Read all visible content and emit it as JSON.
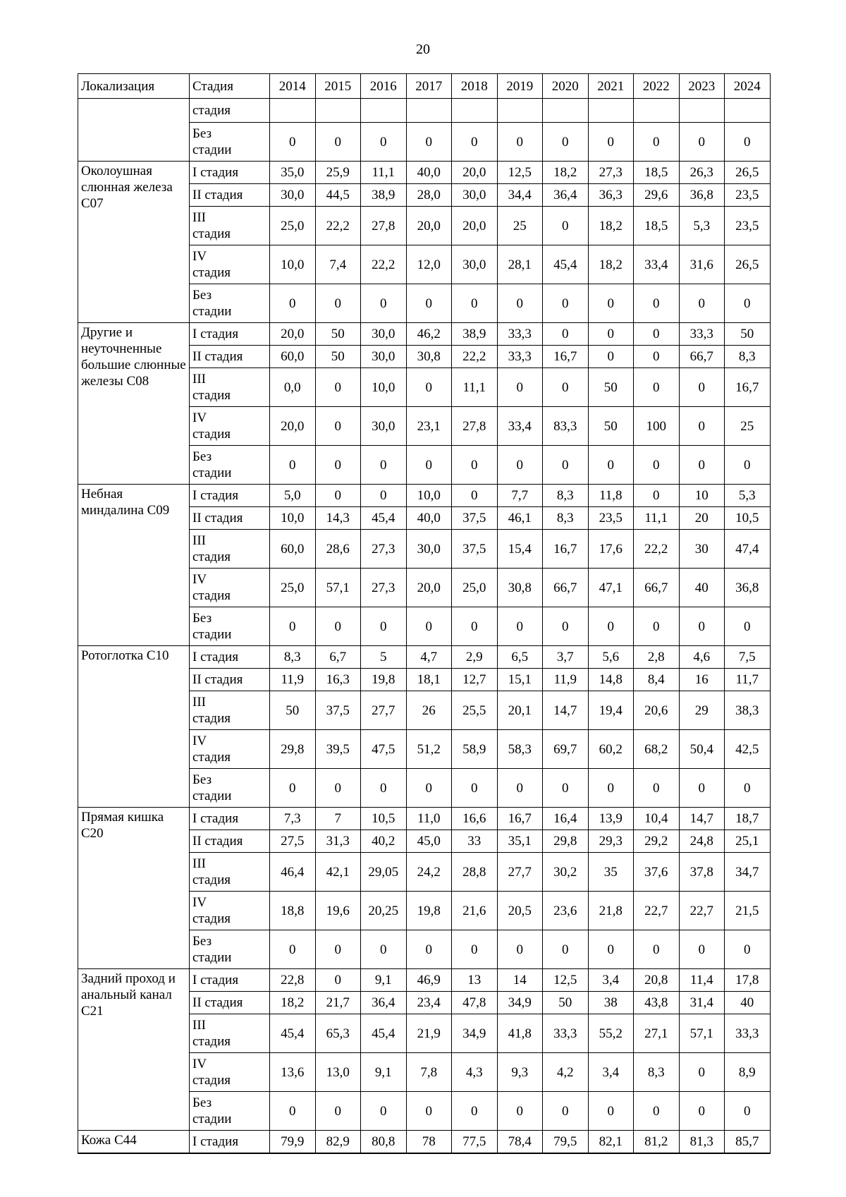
{
  "page": {
    "number": "20"
  },
  "table": {
    "headers": {
      "localization": "Локализация",
      "stage": "Стадия",
      "years": [
        "2014",
        "2015",
        "2016",
        "2017",
        "2018",
        "2019",
        "2020",
        "2021",
        "2022",
        "2023",
        "2024"
      ]
    },
    "stage_labels": {
      "continuation": "стадия",
      "no_stage": "Без\nстадии",
      "stage1": "I стадия",
      "stage2": "II стадия",
      "stage3": "III\nстадия",
      "stage4": "IV\nстадия"
    },
    "groups": [
      {
        "localization": "",
        "rows": [
          {
            "stage": "стадия",
            "values": [
              "",
              "",
              "",
              "",
              "",
              "",
              "",
              "",
              "",
              "",
              ""
            ]
          },
          {
            "stage": "Без\nстадии",
            "values": [
              "0",
              "0",
              "0",
              "0",
              "0",
              "0",
              "0",
              "0",
              "0",
              "0",
              "0"
            ]
          }
        ]
      },
      {
        "localization": "Околоушная слюнная железа С07",
        "rows": [
          {
            "stage": "I стадия",
            "values": [
              "35,0",
              "25,9",
              "11,1",
              "40,0",
              "20,0",
              "12,5",
              "18,2",
              "27,3",
              "18,5",
              "26,3",
              "26,5"
            ]
          },
          {
            "stage": "II стадия",
            "values": [
              "30,0",
              "44,5",
              "38,9",
              "28,0",
              "30,0",
              "34,4",
              "36,4",
              "36,3",
              "29,6",
              "36,8",
              "23,5"
            ]
          },
          {
            "stage": "III\nстадия",
            "values": [
              "25,0",
              "22,2",
              "27,8",
              "20,0",
              "20,0",
              "25",
              "0",
              "18,2",
              "18,5",
              "5,3",
              "23,5"
            ]
          },
          {
            "stage": "IV\nстадия",
            "values": [
              "10,0",
              "7,4",
              "22,2",
              "12,0",
              "30,0",
              "28,1",
              "45,4",
              "18,2",
              "33,4",
              "31,6",
              "26,5"
            ]
          },
          {
            "stage": "Без\nстадии",
            "values": [
              "0",
              "0",
              "0",
              "0",
              "0",
              "0",
              "0",
              "0",
              "0",
              "0",
              "0"
            ]
          }
        ]
      },
      {
        "localization": "Другие и неуточненные большие слюнные железы С08",
        "rows": [
          {
            "stage": "I стадия",
            "values": [
              "20,0",
              "50",
              "30,0",
              "46,2",
              "38,9",
              "33,3",
              "0",
              "0",
              "0",
              "33,3",
              "50"
            ]
          },
          {
            "stage": "II стадия",
            "values": [
              "60,0",
              "50",
              "30,0",
              "30,8",
              "22,2",
              "33,3",
              "16,7",
              "0",
              "0",
              "66,7",
              "8,3"
            ]
          },
          {
            "stage": "III\nстадия",
            "values": [
              "0,0",
              "0",
              "10,0",
              "0",
              "11,1",
              "0",
              "0",
              "50",
              "0",
              "0",
              "16,7"
            ]
          },
          {
            "stage": "IV\nстадия",
            "values": [
              "20,0",
              "0",
              "30,0",
              "23,1",
              "27,8",
              "33,4",
              "83,3",
              "50",
              "100",
              "0",
              "25"
            ]
          },
          {
            "stage": "Без\nстадии",
            "values": [
              "0",
              "0",
              "0",
              "0",
              "0",
              "0",
              "0",
              "0",
              "0",
              "0",
              "0"
            ]
          }
        ]
      },
      {
        "localization": "Небная миндалина С09",
        "rows": [
          {
            "stage": "I стадия",
            "values": [
              "5,0",
              "0",
              "0",
              "10,0",
              "0",
              "7,7",
              "8,3",
              "11,8",
              "0",
              "10",
              "5,3"
            ]
          },
          {
            "stage": "II стадия",
            "values": [
              "10,0",
              "14,3",
              "45,4",
              "40,0",
              "37,5",
              "46,1",
              "8,3",
              "23,5",
              "11,1",
              "20",
              "10,5"
            ]
          },
          {
            "stage": "III\nстадия",
            "values": [
              "60,0",
              "28,6",
              "27,3",
              "30,0",
              "37,5",
              "15,4",
              "16,7",
              "17,6",
              "22,2",
              "30",
              "47,4"
            ]
          },
          {
            "stage": "IV\nстадия",
            "values": [
              "25,0",
              "57,1",
              "27,3",
              "20,0",
              "25,0",
              "30,8",
              "66,7",
              "47,1",
              "66,7",
              "40",
              "36,8"
            ]
          },
          {
            "stage": "Без\nстадии",
            "values": [
              "0",
              "0",
              "0",
              "0",
              "0",
              "0",
              "0",
              "0",
              "0",
              "0",
              "0"
            ]
          }
        ]
      },
      {
        "localization": "Ротоглотка С10",
        "rows": [
          {
            "stage": "I стадия",
            "values": [
              "8,3",
              "6,7",
              "5",
              "4,7",
              "2,9",
              "6,5",
              "3,7",
              "5,6",
              "2,8",
              "4,6",
              "7,5"
            ]
          },
          {
            "stage": "II стадия",
            "values": [
              "11,9",
              "16,3",
              "19,8",
              "18,1",
              "12,7",
              "15,1",
              "11,9",
              "14,8",
              "8,4",
              "16",
              "11,7"
            ]
          },
          {
            "stage": "III\nстадия",
            "values": [
              "50",
              "37,5",
              "27,7",
              "26",
              "25,5",
              "20,1",
              "14,7",
              "19,4",
              "20,6",
              "29",
              "38,3"
            ]
          },
          {
            "stage": "IV\nстадия",
            "values": [
              "29,8",
              "39,5",
              "47,5",
              "51,2",
              "58,9",
              "58,3",
              "69,7",
              "60,2",
              "68,2",
              "50,4",
              "42,5"
            ]
          },
          {
            "stage": "Без\nстадии",
            "values": [
              "0",
              "0",
              "0",
              "0",
              "0",
              "0",
              "0",
              "0",
              "0",
              "0",
              "0"
            ]
          }
        ]
      },
      {
        "localization": "Прямая кишка С20",
        "rows": [
          {
            "stage": "I стадия",
            "values": [
              "7,3",
              "7",
              "10,5",
              "11,0",
              "16,6",
              "16,7",
              "16,4",
              "13,9",
              "10,4",
              "14,7",
              "18,7"
            ]
          },
          {
            "stage": "II стадия",
            "values": [
              "27,5",
              "31,3",
              "40,2",
              "45,0",
              "33",
              "35,1",
              "29,8",
              "29,3",
              "29,2",
              "24,8",
              "25,1"
            ]
          },
          {
            "stage": "III\nстадия",
            "values": [
              "46,4",
              "42,1",
              "29,05",
              "24,2",
              "28,8",
              "27,7",
              "30,2",
              "35",
              "37,6",
              "37,8",
              "34,7"
            ]
          },
          {
            "stage": "IV\nстадия",
            "values": [
              "18,8",
              "19,6",
              "20,25",
              "19,8",
              "21,6",
              "20,5",
              "23,6",
              "21,8",
              "22,7",
              "22,7",
              "21,5"
            ]
          },
          {
            "stage": "Без\nстадии",
            "values": [
              "0",
              "0",
              "0",
              "0",
              "0",
              "0",
              "0",
              "0",
              "0",
              "0",
              "0"
            ]
          }
        ]
      },
      {
        "localization": "Задний проход и анальный канал С21",
        "rows": [
          {
            "stage": "I стадия",
            "values": [
              "22,8",
              "0",
              "9,1",
              "46,9",
              "13",
              "14",
              "12,5",
              "3,4",
              "20,8",
              "11,4",
              "17,8"
            ]
          },
          {
            "stage": "II стадия",
            "values": [
              "18,2",
              "21,7",
              "36,4",
              "23,4",
              "47,8",
              "34,9",
              "50",
              "38",
              "43,8",
              "31,4",
              "40"
            ]
          },
          {
            "stage": "III\nстадия",
            "values": [
              "45,4",
              "65,3",
              "45,4",
              "21,9",
              "34,9",
              "41,8",
              "33,3",
              "55,2",
              "27,1",
              "57,1",
              "33,3"
            ]
          },
          {
            "stage": "IV\nстадия",
            "values": [
              "13,6",
              "13,0",
              "9,1",
              "7,8",
              "4,3",
              "9,3",
              "4,2",
              "3,4",
              "8,3",
              "0",
              "8,9"
            ]
          },
          {
            "stage": "Без\nстадии",
            "values": [
              "0",
              "0",
              "0",
              "0",
              "0",
              "0",
              "0",
              "0",
              "0",
              "0",
              "0"
            ]
          }
        ]
      },
      {
        "localization": "Кожа С44",
        "rows": [
          {
            "stage": "I стадия",
            "values": [
              "79,9",
              "82,9",
              "80,8",
              "78",
              "77,5",
              "78,4",
              "79,5",
              "82,1",
              "81,2",
              "81,3",
              "85,7"
            ]
          }
        ]
      }
    ]
  }
}
